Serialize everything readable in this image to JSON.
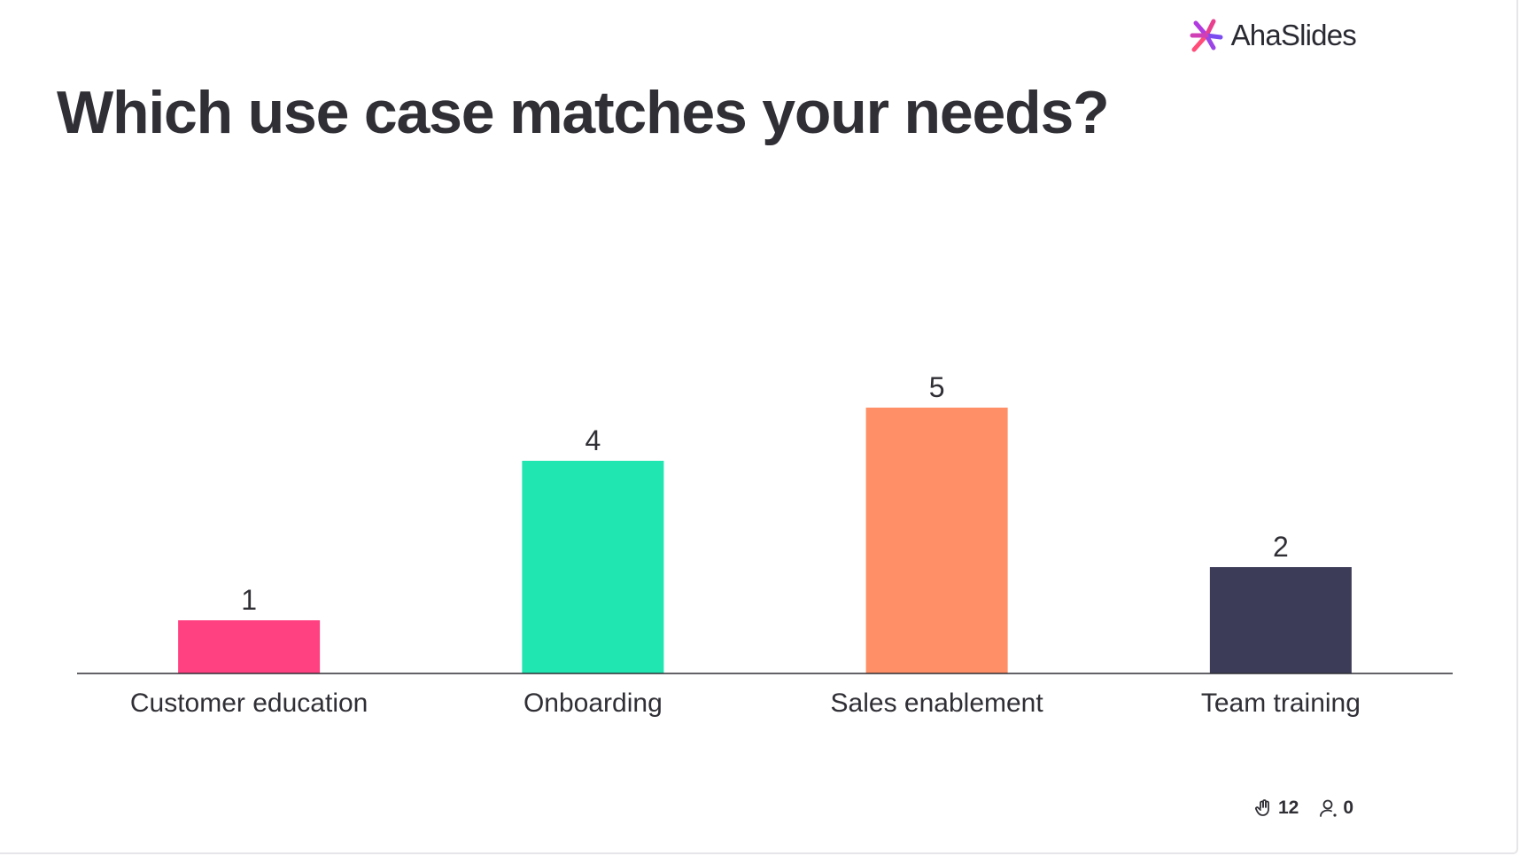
{
  "brand": {
    "name": "AhaSlides"
  },
  "slide": {
    "question": "Which use case matches your needs?"
  },
  "footer": {
    "responses_icon": "hand-icon",
    "responses_count": "12",
    "participants_icon": "user-icon",
    "participants_count": "0"
  },
  "chart_data": {
    "type": "bar",
    "title": "Which use case matches your needs?",
    "categories": [
      "Customer education",
      "Onboarding",
      "Sales enablement",
      "Team training"
    ],
    "values": [
      1,
      4,
      5,
      2
    ],
    "colors": [
      "#ff4081",
      "#20e6b2",
      "#ff8f66",
      "#3d3c58"
    ],
    "data_labels": [
      "1",
      "4",
      "5",
      "2"
    ],
    "xlabel": "",
    "ylabel": "",
    "grid": false,
    "legend": "none"
  }
}
